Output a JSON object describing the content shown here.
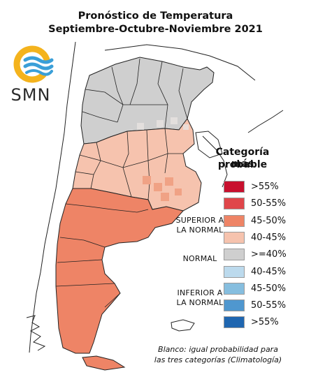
{
  "title": "Pronóstico de Temperatura",
  "subtitle": "Septiembre-Octubre-Noviembre 2021",
  "logo_text": "SMN",
  "legend": {
    "title_line1": "Categoría más",
    "title_line2": "probable",
    "items": [
      {
        "label": ">55%",
        "color": "#c8102e"
      },
      {
        "label": "50-55%",
        "color": "#e0464a"
      },
      {
        "label": "45-50%",
        "color": "#ee8466"
      },
      {
        "label": "40-45%",
        "color": "#f6c3ae"
      },
      {
        "label": ">=40%",
        "color": "#cfcfcf"
      },
      {
        "label": "40-45%",
        "color": "#bcdaed"
      },
      {
        "label": "45-50%",
        "color": "#86bedf"
      },
      {
        "label": "50-55%",
        "color": "#4f97cf"
      },
      {
        "label": ">55%",
        "color": "#1f66b0"
      }
    ],
    "categories": {
      "superior_line1": "SUPERIOR A",
      "superior_line2": "LA NORMAL",
      "normal": "NORMAL",
      "inferior_line1": "INFERIOR A",
      "inferior_line2": "LA NORMAL"
    }
  },
  "footnote_line1": "Blanco: igual probabilidad para",
  "footnote_line2": "las tres categorías (Climatología)",
  "map_regions": {
    "north": "Normal (>=40%)",
    "center": "Superior a la normal (40-45%)",
    "south": "Superior a la normal (45-50%)"
  },
  "colors": {
    "normal": "#cfcfcf",
    "above_40_45": "#f6c3ae",
    "above_45_50": "#ee8466",
    "logo_yellow": "#f4b31d",
    "logo_blue": "#3a9fd8"
  }
}
